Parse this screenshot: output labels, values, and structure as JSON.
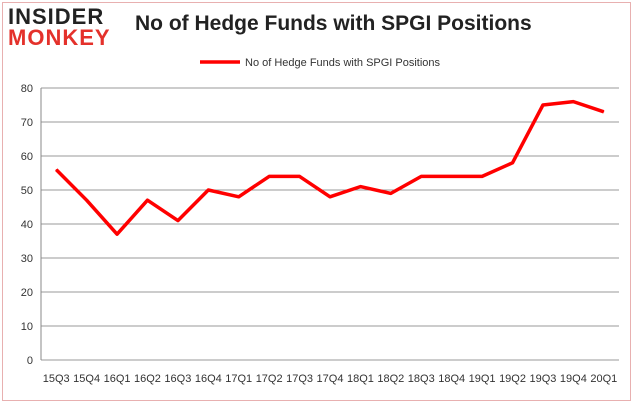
{
  "logo": {
    "line1": "INSIDER",
    "line2": "MONKEY"
  },
  "chart_data": {
    "type": "line",
    "title": "No of Hedge Funds with SPGI Positions",
    "categories": [
      "15Q3",
      "15Q4",
      "16Q1",
      "16Q2",
      "16Q3",
      "16Q4",
      "17Q1",
      "17Q2",
      "17Q3",
      "17Q4",
      "18Q1",
      "18Q2",
      "18Q3",
      "18Q4",
      "19Q1",
      "19Q2",
      "19Q3",
      "19Q4",
      "20Q1"
    ],
    "series": [
      {
        "name": "No of Hedge Funds with SPGI Positions",
        "values": [
          56,
          47,
          37,
          47,
          41,
          50,
          48,
          54,
          54,
          48,
          51,
          49,
          54,
          54,
          54,
          58,
          75,
          76,
          73
        ],
        "color": "#ff0000"
      }
    ],
    "yticks": [
      0,
      10,
      20,
      30,
      40,
      50,
      60,
      70,
      80
    ],
    "ylim": [
      0,
      80
    ],
    "grid": true,
    "legend": "top-center"
  }
}
